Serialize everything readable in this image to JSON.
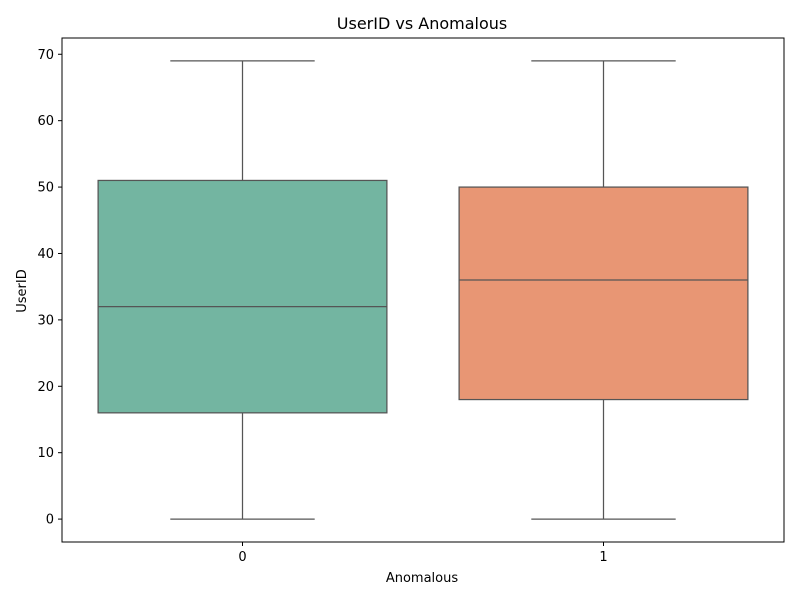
{
  "chart_data": {
    "type": "box",
    "title": "UserID vs Anomalous",
    "xlabel": "Anomalous",
    "ylabel": "UserID",
    "ylim": [
      -3.45,
      72.45
    ],
    "yticks": [
      0,
      10,
      20,
      30,
      40,
      50,
      60,
      70
    ],
    "categories": [
      "0",
      "1"
    ],
    "boxes": [
      {
        "category": "0",
        "min": 0,
        "q1": 16,
        "median": 32,
        "q3": 51,
        "max": 69,
        "color": "#73b5a1"
      },
      {
        "category": "1",
        "min": 0,
        "q1": 18,
        "median": 36,
        "q3": 50,
        "max": 69,
        "color": "#e89674"
      }
    ],
    "grid": false,
    "legend": "none"
  }
}
